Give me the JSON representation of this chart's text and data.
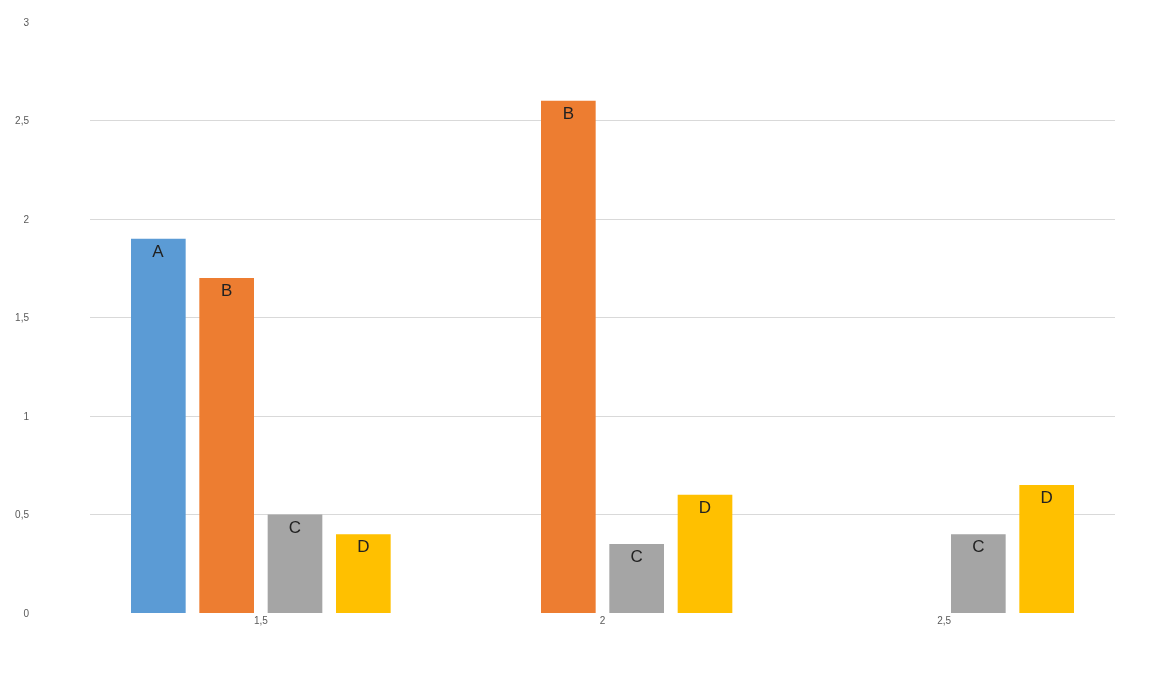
{
  "chart_data": {
    "type": "bar",
    "categories": [
      "1,5",
      "2",
      "2,5"
    ],
    "series": [
      {
        "name": "A",
        "color": "#5b9bd5",
        "values": [
          1.9,
          null,
          null
        ]
      },
      {
        "name": "B",
        "color": "#ed7d31",
        "values": [
          1.7,
          2.6,
          null
        ]
      },
      {
        "name": "C",
        "color": "#a5a5a5",
        "values": [
          0.5,
          0.35,
          0.4
        ]
      },
      {
        "name": "D",
        "color": "#ffc000",
        "values": [
          0.4,
          0.6,
          0.65
        ]
      }
    ],
    "ylim": [
      0,
      3
    ],
    "yticks": [
      0,
      {
        "value": 0.5,
        "label": "0,5"
      },
      1,
      {
        "value": 1.5,
        "label": "1,5"
      },
      2,
      {
        "value": 2.5,
        "label": "2,5"
      },
      3
    ],
    "grid": "y",
    "legend": false
  }
}
